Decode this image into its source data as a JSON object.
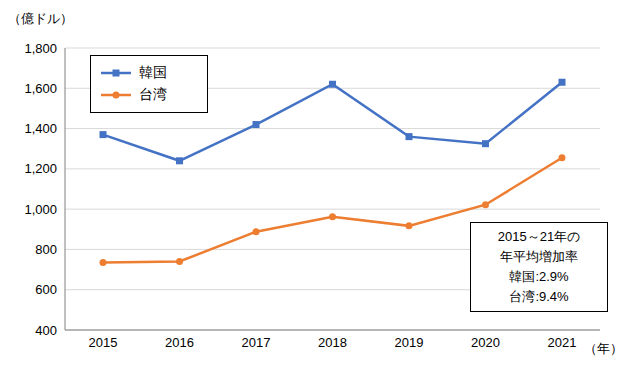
{
  "chart_data": {
    "type": "line",
    "y_label": "（億ドル）",
    "x_label": "（年）",
    "categories": [
      "2015",
      "2016",
      "2017",
      "2018",
      "2019",
      "2020",
      "2021"
    ],
    "series": [
      {
        "name": "韓国",
        "color": "#4472c4",
        "marker": "square",
        "values": [
          1370,
          1240,
          1420,
          1620,
          1360,
          1325,
          1630
        ]
      },
      {
        "name": "台湾",
        "color": "#ed7d31",
        "marker": "circle",
        "values": [
          735,
          740,
          888,
          962,
          917,
          1022,
          1255
        ]
      }
    ],
    "ylim": [
      400,
      1800
    ],
    "yticks": [
      400,
      600,
      800,
      {
        "value": 1000,
        "label": "1,000"
      },
      {
        "value": 1200,
        "label": "1,200"
      },
      {
        "value": 1400,
        "label": "1,400"
      },
      {
        "value": 1600,
        "label": "1,600"
      },
      {
        "value": 1800,
        "label": "1,800"
      }
    ],
    "grid": true,
    "legend": "upper left",
    "annotation": [
      "2015～21年の",
      "年平均増加率",
      "韓国:2.9%",
      "台湾:9.4%"
    ]
  }
}
